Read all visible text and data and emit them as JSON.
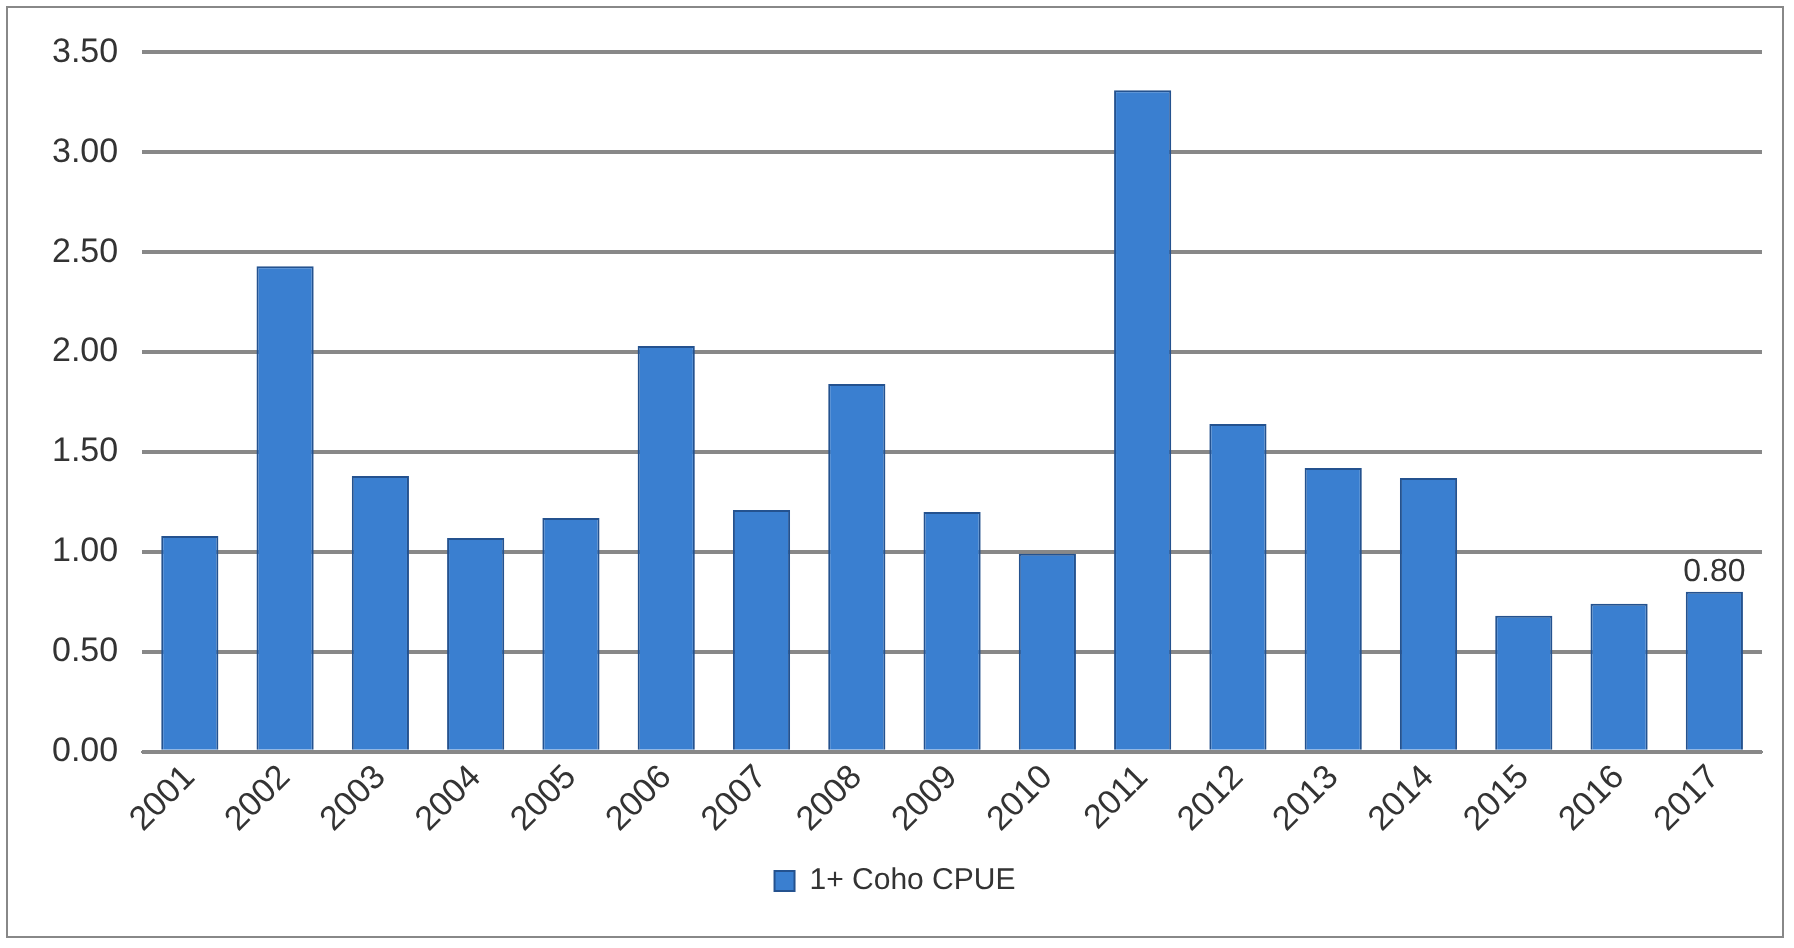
{
  "chart_data": {
    "type": "bar",
    "categories": [
      "2001",
      "2002",
      "2003",
      "2004",
      "2005",
      "2006",
      "2007",
      "2008",
      "2009",
      "2010",
      "2011",
      "2012",
      "2013",
      "2014",
      "2015",
      "2016",
      "2017"
    ],
    "series": [
      {
        "name": "1+ Coho CPUE",
        "color": "#3a7fd0",
        "values": [
          1.08,
          2.43,
          1.38,
          1.07,
          1.17,
          2.03,
          1.21,
          1.84,
          1.2,
          0.99,
          3.31,
          1.64,
          1.42,
          1.37,
          0.68,
          0.74,
          0.8
        ],
        "value_labels": [
          null,
          null,
          null,
          null,
          null,
          null,
          null,
          null,
          null,
          null,
          null,
          null,
          null,
          null,
          null,
          null,
          "0.80"
        ]
      }
    ],
    "ylim": [
      0,
      3.5
    ],
    "yticks": [
      {
        "value": 0,
        "label": "0.00"
      },
      {
        "value": 0.5,
        "label": "0.50"
      },
      {
        "value": 1,
        "label": "1.00"
      },
      {
        "value": 1.5,
        "label": "1.50"
      },
      {
        "value": 2,
        "label": "2.00"
      },
      {
        "value": 2.5,
        "label": "2.50"
      },
      {
        "value": 3,
        "label": "3.00"
      },
      {
        "value": 3.5,
        "label": "3.50"
      }
    ],
    "grid": "y",
    "legend": "bottom"
  }
}
